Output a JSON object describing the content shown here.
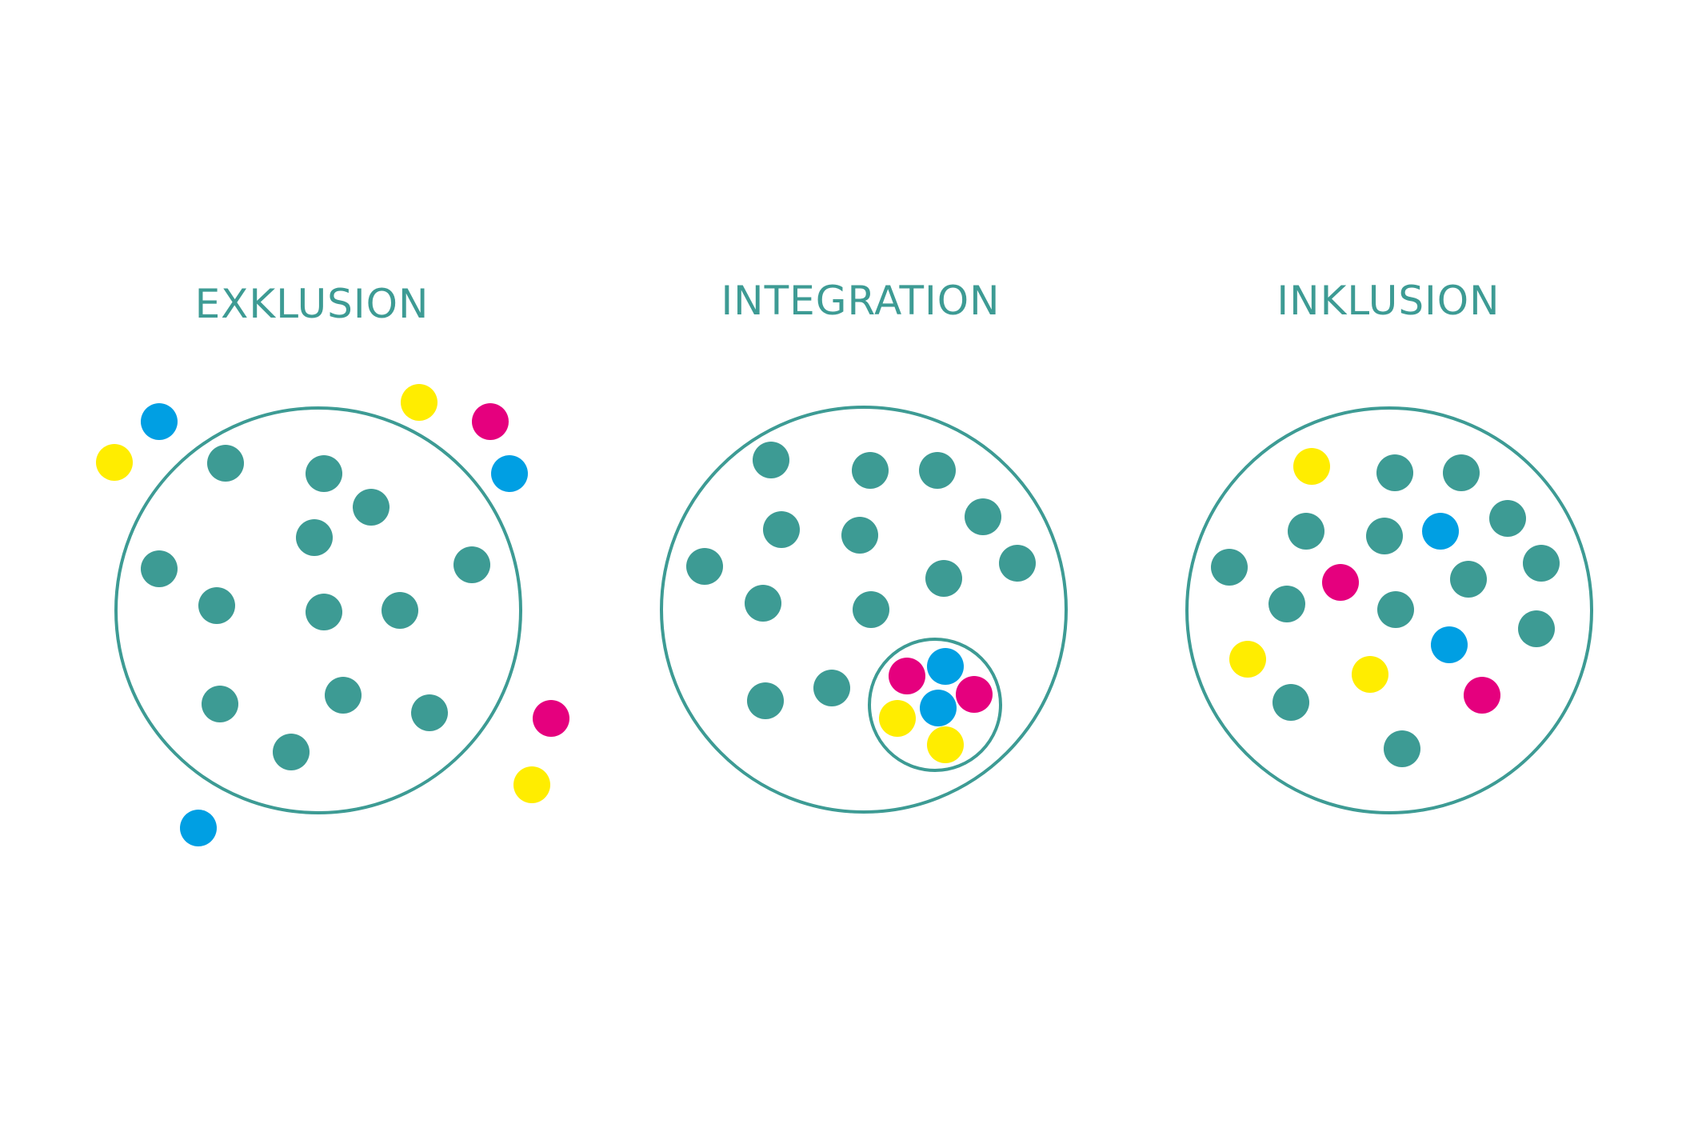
{
  "panels": {
    "exklusion": {
      "title": "EXKLUSION"
    },
    "integration": {
      "title": "INTEGRATION"
    },
    "inklusion": {
      "title": "INKLUSION"
    }
  },
  "colors": {
    "outline": "#3d9b94",
    "teal": "#3d9b94",
    "blue": "#009fe3",
    "yellow": "#ffed00",
    "magenta": "#e5007e"
  }
}
